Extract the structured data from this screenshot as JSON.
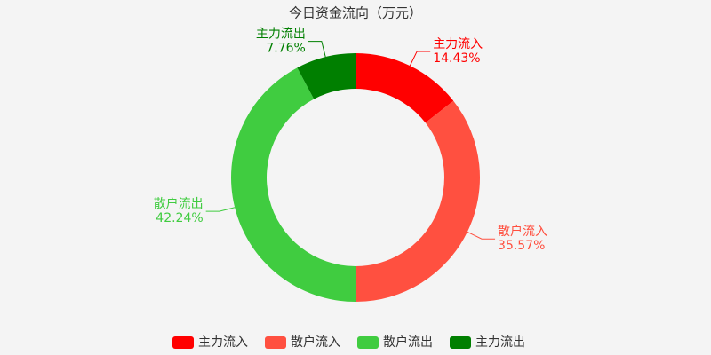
{
  "chart_data": {
    "type": "donut",
    "title": "今日资金流向（万元）",
    "categories": [
      "主力流入",
      "散户流入",
      "散户流出",
      "主力流出"
    ],
    "values": [
      14.43,
      35.57,
      42.24,
      7.76
    ],
    "value_labels": [
      "14.43%",
      "35.57%",
      "42.24%",
      "7.76%"
    ],
    "colors": [
      "#ff0000",
      "#ff5040",
      "#40cc40",
      "#007f00"
    ]
  }
}
